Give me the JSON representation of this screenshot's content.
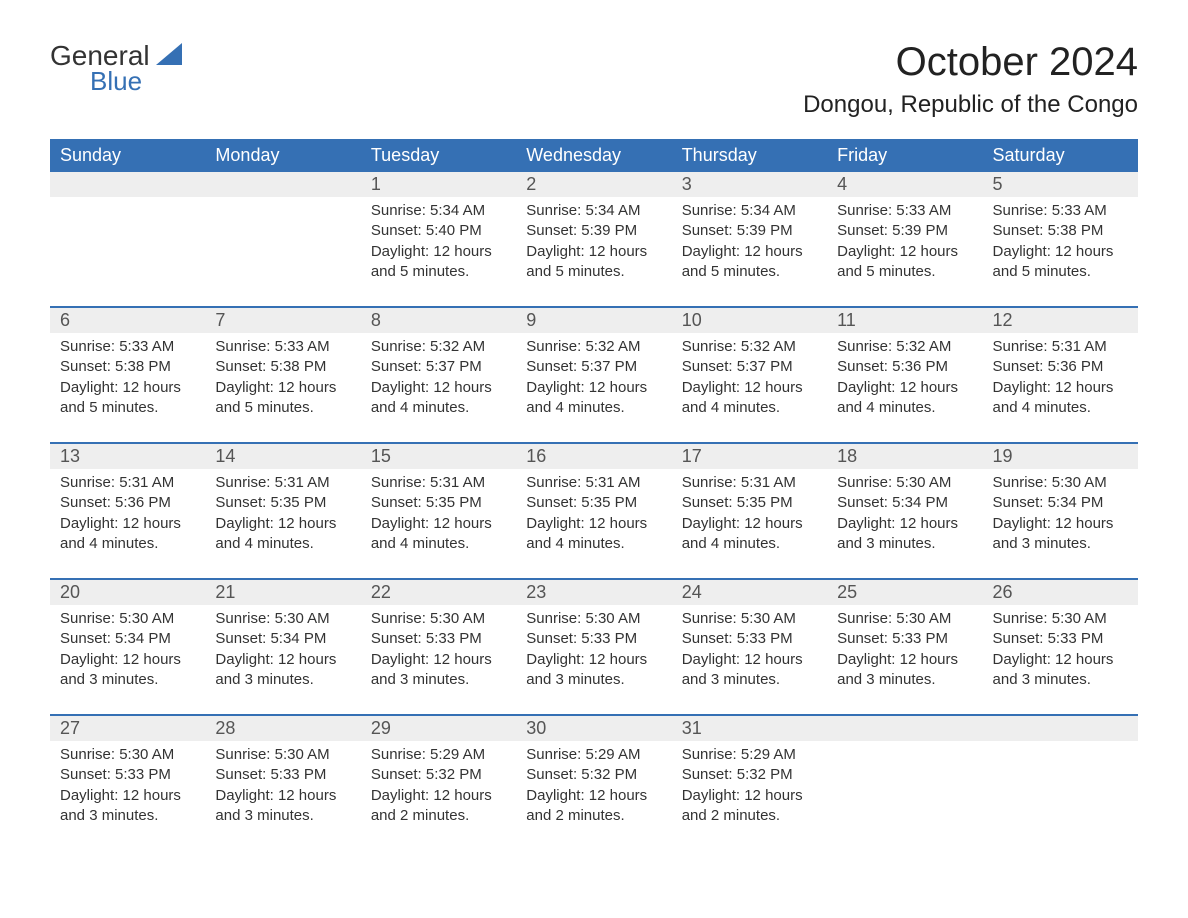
{
  "brand": {
    "word1": "General",
    "word2": "Blue"
  },
  "title": "October 2024",
  "location": "Dongou, Republic of the Congo",
  "colors": {
    "header_bg": "#3570b4",
    "header_text": "#ffffff",
    "daynum_bg": "#eeeeee",
    "daynum_text": "#555555",
    "body_text": "#333333",
    "rule": "#3570b4",
    "page_bg": "#ffffff",
    "brand_blue": "#3570b4"
  },
  "typography": {
    "title_fontsize": 40,
    "location_fontsize": 24,
    "header_fontsize": 18,
    "daynum_fontsize": 18,
    "body_fontsize": 15
  },
  "weekdays": [
    "Sunday",
    "Monday",
    "Tuesday",
    "Wednesday",
    "Thursday",
    "Friday",
    "Saturday"
  ],
  "labels": {
    "sunrise": "Sunrise:",
    "sunset": "Sunset:",
    "daylight": "Daylight:"
  },
  "weeks": [
    [
      null,
      null,
      {
        "n": "1",
        "sunrise": "5:34 AM",
        "sunset": "5:40 PM",
        "daylight": "12 hours and 5 minutes."
      },
      {
        "n": "2",
        "sunrise": "5:34 AM",
        "sunset": "5:39 PM",
        "daylight": "12 hours and 5 minutes."
      },
      {
        "n": "3",
        "sunrise": "5:34 AM",
        "sunset": "5:39 PM",
        "daylight": "12 hours and 5 minutes."
      },
      {
        "n": "4",
        "sunrise": "5:33 AM",
        "sunset": "5:39 PM",
        "daylight": "12 hours and 5 minutes."
      },
      {
        "n": "5",
        "sunrise": "5:33 AM",
        "sunset": "5:38 PM",
        "daylight": "12 hours and 5 minutes."
      }
    ],
    [
      {
        "n": "6",
        "sunrise": "5:33 AM",
        "sunset": "5:38 PM",
        "daylight": "12 hours and 5 minutes."
      },
      {
        "n": "7",
        "sunrise": "5:33 AM",
        "sunset": "5:38 PM",
        "daylight": "12 hours and 5 minutes."
      },
      {
        "n": "8",
        "sunrise": "5:32 AM",
        "sunset": "5:37 PM",
        "daylight": "12 hours and 4 minutes."
      },
      {
        "n": "9",
        "sunrise": "5:32 AM",
        "sunset": "5:37 PM",
        "daylight": "12 hours and 4 minutes."
      },
      {
        "n": "10",
        "sunrise": "5:32 AM",
        "sunset": "5:37 PM",
        "daylight": "12 hours and 4 minutes."
      },
      {
        "n": "11",
        "sunrise": "5:32 AM",
        "sunset": "5:36 PM",
        "daylight": "12 hours and 4 minutes."
      },
      {
        "n": "12",
        "sunrise": "5:31 AM",
        "sunset": "5:36 PM",
        "daylight": "12 hours and 4 minutes."
      }
    ],
    [
      {
        "n": "13",
        "sunrise": "5:31 AM",
        "sunset": "5:36 PM",
        "daylight": "12 hours and 4 minutes."
      },
      {
        "n": "14",
        "sunrise": "5:31 AM",
        "sunset": "5:35 PM",
        "daylight": "12 hours and 4 minutes."
      },
      {
        "n": "15",
        "sunrise": "5:31 AM",
        "sunset": "5:35 PM",
        "daylight": "12 hours and 4 minutes."
      },
      {
        "n": "16",
        "sunrise": "5:31 AM",
        "sunset": "5:35 PM",
        "daylight": "12 hours and 4 minutes."
      },
      {
        "n": "17",
        "sunrise": "5:31 AM",
        "sunset": "5:35 PM",
        "daylight": "12 hours and 4 minutes."
      },
      {
        "n": "18",
        "sunrise": "5:30 AM",
        "sunset": "5:34 PM",
        "daylight": "12 hours and 3 minutes."
      },
      {
        "n": "19",
        "sunrise": "5:30 AM",
        "sunset": "5:34 PM",
        "daylight": "12 hours and 3 minutes."
      }
    ],
    [
      {
        "n": "20",
        "sunrise": "5:30 AM",
        "sunset": "5:34 PM",
        "daylight": "12 hours and 3 minutes."
      },
      {
        "n": "21",
        "sunrise": "5:30 AM",
        "sunset": "5:34 PM",
        "daylight": "12 hours and 3 minutes."
      },
      {
        "n": "22",
        "sunrise": "5:30 AM",
        "sunset": "5:33 PM",
        "daylight": "12 hours and 3 minutes."
      },
      {
        "n": "23",
        "sunrise": "5:30 AM",
        "sunset": "5:33 PM",
        "daylight": "12 hours and 3 minutes."
      },
      {
        "n": "24",
        "sunrise": "5:30 AM",
        "sunset": "5:33 PM",
        "daylight": "12 hours and 3 minutes."
      },
      {
        "n": "25",
        "sunrise": "5:30 AM",
        "sunset": "5:33 PM",
        "daylight": "12 hours and 3 minutes."
      },
      {
        "n": "26",
        "sunrise": "5:30 AM",
        "sunset": "5:33 PM",
        "daylight": "12 hours and 3 minutes."
      }
    ],
    [
      {
        "n": "27",
        "sunrise": "5:30 AM",
        "sunset": "5:33 PM",
        "daylight": "12 hours and 3 minutes."
      },
      {
        "n": "28",
        "sunrise": "5:30 AM",
        "sunset": "5:33 PM",
        "daylight": "12 hours and 3 minutes."
      },
      {
        "n": "29",
        "sunrise": "5:29 AM",
        "sunset": "5:32 PM",
        "daylight": "12 hours and 2 minutes."
      },
      {
        "n": "30",
        "sunrise": "5:29 AM",
        "sunset": "5:32 PM",
        "daylight": "12 hours and 2 minutes."
      },
      {
        "n": "31",
        "sunrise": "5:29 AM",
        "sunset": "5:32 PM",
        "daylight": "12 hours and 2 minutes."
      },
      null,
      null
    ]
  ]
}
